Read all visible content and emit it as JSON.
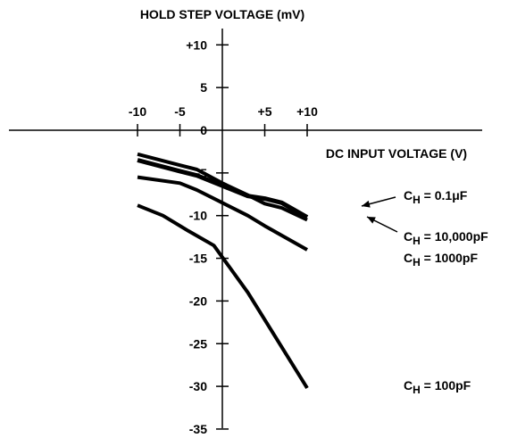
{
  "chart_data": {
    "type": "line",
    "ylabel": "HOLD STEP VOLTAGE (mV)",
    "xlabel": "DC INPUT VOLTAGE (V)",
    "xlim": [
      -10,
      10
    ],
    "ylim": [
      -35,
      10
    ],
    "x_ticks": [
      -10,
      -5,
      0,
      5,
      10
    ],
    "x_tick_labels": [
      "-10",
      "-5",
      "",
      "+5",
      "+10"
    ],
    "y_ticks": [
      10,
      5,
      0,
      -5,
      -10,
      -15,
      -20,
      -25,
      -30,
      -35
    ],
    "y_tick_labels": [
      "+10",
      "5",
      "0",
      "-5",
      "-10",
      "-15",
      "-20",
      "-25",
      "-30",
      "-35"
    ],
    "grid": false,
    "series": [
      {
        "name": "CH = 0.1μF",
        "label_main": "C",
        "label_sub": "H",
        "label_rest": " = 0.1μF",
        "x": [
          -10,
          -5,
          -3,
          0,
          3,
          5,
          7,
          10
        ],
        "y": [
          -3.5,
          -4.8,
          -5.3,
          -6.5,
          -7.7,
          -8,
          -8.5,
          -10.2
        ],
        "stroke": 5
      },
      {
        "name": "CH = 10,000pF",
        "label_main": "C",
        "label_sub": "H",
        "label_rest": " = 10,000pF",
        "x": [
          -10,
          -5,
          -3,
          0,
          3,
          5,
          7,
          10
        ],
        "y": [
          -2.8,
          -4.1,
          -4.6,
          -6.2,
          -7.6,
          -8.6,
          -9.1,
          -10.5
        ],
        "stroke": 4
      },
      {
        "name": "CH = 1000pF",
        "label_main": "C",
        "label_sub": "H",
        "label_rest": " = 1000pF",
        "x": [
          -10,
          -5,
          -3,
          0,
          3,
          5,
          10
        ],
        "y": [
          -5.5,
          -6.2,
          -7,
          -8.5,
          -10,
          -11.2,
          -14
        ],
        "stroke": 4
      },
      {
        "name": "CH = 100pF",
        "label_main": "C",
        "label_sub": "H",
        "label_rest": " = 100pF",
        "x": [
          -10,
          -7,
          -4,
          -1,
          3,
          10
        ],
        "y": [
          -8.8,
          -10,
          -11.8,
          -13.5,
          -19,
          -30.2
        ],
        "stroke": 4
      }
    ]
  }
}
